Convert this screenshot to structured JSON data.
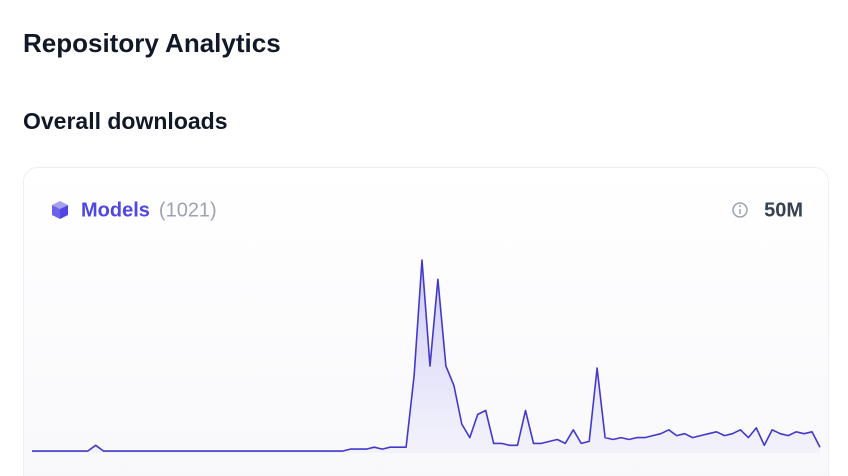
{
  "header": {
    "title": "Repository Analytics"
  },
  "section": {
    "title": "Overall downloads"
  },
  "card": {
    "label": "Models",
    "count": "(1021)",
    "total": "50M"
  },
  "chart_data": {
    "type": "area",
    "color": "#4338ca",
    "ylim": [
      0,
      100
    ],
    "values": [
      1,
      1,
      1,
      1,
      1,
      1,
      1,
      1,
      4,
      1,
      1,
      1,
      1,
      1,
      1,
      1,
      1,
      1,
      1,
      1,
      1,
      1,
      1,
      1,
      1,
      1,
      1,
      1,
      1,
      1,
      1,
      1,
      1,
      1,
      1,
      1,
      1,
      1,
      1,
      1,
      2,
      2,
      2,
      3,
      2,
      3,
      3,
      3,
      40,
      100,
      45,
      90,
      45,
      35,
      15,
      8,
      20,
      22,
      5,
      5,
      4,
      4,
      22,
      5,
      5,
      6,
      7,
      5,
      12,
      5,
      6,
      44,
      8,
      7,
      8,
      7,
      8,
      8,
      9,
      10,
      12,
      9,
      10,
      8,
      9,
      10,
      11,
      9,
      10,
      12,
      8,
      13,
      4,
      12,
      10,
      9,
      11,
      10,
      11,
      3
    ]
  }
}
